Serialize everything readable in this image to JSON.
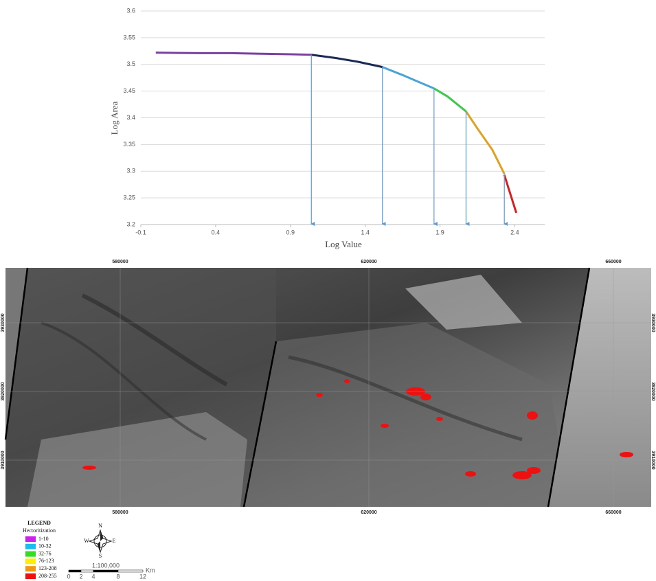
{
  "chart_data": {
    "type": "line",
    "x_label": "Log Value",
    "y_label": "Log Area",
    "xlim": [
      -0.1,
      2.6
    ],
    "xticks": [
      -0.1,
      0.4,
      0.9,
      1.4,
      1.9,
      2.4
    ],
    "ylim": [
      3.2,
      3.6
    ],
    "yticks": [
      3.2,
      3.25,
      3.3,
      3.35,
      3.4,
      3.45,
      3.5,
      3.55,
      3.6
    ],
    "grid": true,
    "series": [
      {
        "color": "#7b3fa0",
        "x": [
          0,
          0.3,
          0.5,
          0.7,
          0.9,
          1.04
        ],
        "values": [
          3.522,
          3.521,
          3.521,
          3.52,
          3.519,
          3.518
        ]
      },
      {
        "color": "#1b2a55",
        "x": [
          1.04,
          1.2,
          1.35,
          1.515
        ],
        "values": [
          3.518,
          3.512,
          3.505,
          3.495
        ]
      },
      {
        "color": "#4aa3d8",
        "x": [
          1.515,
          1.65,
          1.75,
          1.86
        ],
        "values": [
          3.495,
          3.48,
          3.468,
          3.455
        ]
      },
      {
        "color": "#3cc84a",
        "x": [
          1.86,
          1.95,
          2.074
        ],
        "values": [
          3.455,
          3.44,
          3.412
        ]
      },
      {
        "color": "#e0a020",
        "x": [
          2.074,
          2.15,
          2.25,
          2.33
        ],
        "values": [
          3.412,
          3.38,
          3.34,
          3.295
        ]
      },
      {
        "color": "#d42020",
        "x": [
          2.33,
          2.41
        ],
        "values": [
          3.293,
          3.222
        ]
      }
    ],
    "thresholds": [
      {
        "x": 1.04,
        "y": 3.518
      },
      {
        "x": 1.515,
        "y": 3.495
      },
      {
        "x": 1.86,
        "y": 3.455
      },
      {
        "x": 2.074,
        "y": 3.412
      },
      {
        "x": 2.33,
        "y": 3.295
      }
    ],
    "threshold_color": "#5b9bd5"
  },
  "map": {
    "eastings": [
      "580000",
      "620000",
      "660000"
    ],
    "northings": [
      "3930000",
      "3920000",
      "3910000"
    ],
    "legend": {
      "title": "LEGEND",
      "subtitle": "Hectoritization",
      "items": [
        {
          "label": "1-10",
          "color": "#cc22ee"
        },
        {
          "label": "10-32",
          "color": "#22bbee"
        },
        {
          "label": "32-76",
          "color": "#33dd22"
        },
        {
          "label": "76-123",
          "color": "#ffee00"
        },
        {
          "label": "123-208",
          "color": "#ee9911"
        },
        {
          "label": "208-255",
          "color": "#ee1111"
        }
      ]
    },
    "compass": {
      "n": "N",
      "s": "S",
      "e": "E",
      "w": "W"
    },
    "scale": {
      "ratio": "1:100,000",
      "ticks": [
        0,
        2,
        4,
        8,
        12
      ],
      "unit": "Km"
    }
  }
}
